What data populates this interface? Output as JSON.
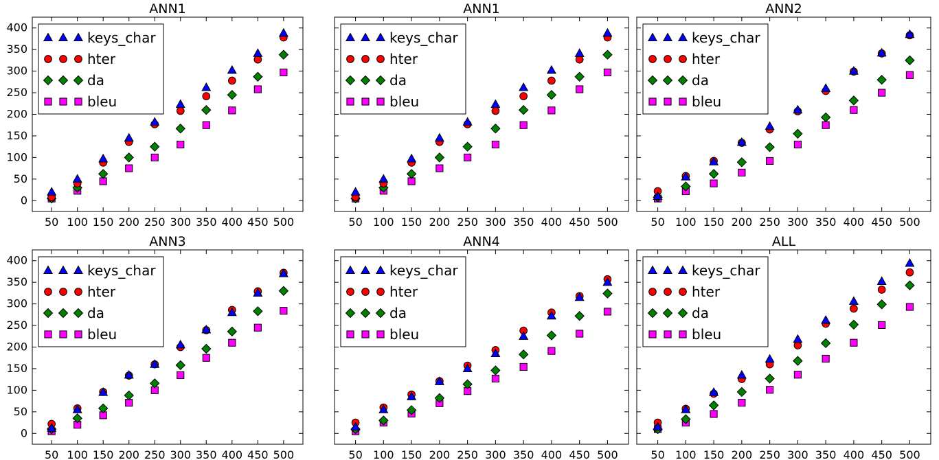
{
  "figure": {
    "marker_colors": {
      "keys_char": "#0000ff",
      "hter": "#ff0000",
      "da": "#008000",
      "bleu": "#ff00ff"
    },
    "marker_shapes": {
      "keys_char": "triangle",
      "hter": "circle",
      "da": "diamond",
      "bleu": "square"
    }
  },
  "chart_data": [
    {
      "type": "scatter",
      "title": "ANN1",
      "categories": [
        "50",
        "100",
        "150",
        "200",
        "250",
        "300",
        "350",
        "400",
        "450",
        "500"
      ],
      "ylim": [
        -25,
        425
      ],
      "yticks": [
        0,
        50,
        100,
        150,
        200,
        250,
        300,
        350,
        400
      ],
      "legend": "top-left",
      "series": [
        {
          "name": "keys_char",
          "values": [
            20,
            50,
            97,
            145,
            182,
            223,
            262,
            302,
            341,
            388
          ]
        },
        {
          "name": "hter",
          "values": [
            8,
            40,
            88,
            136,
            177,
            208,
            242,
            278,
            327,
            378
          ]
        },
        {
          "name": "da",
          "values": [
            5,
            30,
            62,
            100,
            125,
            167,
            210,
            245,
            287,
            338
          ]
        },
        {
          "name": "bleu",
          "values": [
            5,
            23,
            45,
            75,
            100,
            130,
            175,
            209,
            258,
            297
          ]
        }
      ]
    },
    {
      "type": "scatter",
      "title": "ANN1",
      "categories": [
        "50",
        "100",
        "150",
        "200",
        "250",
        "300",
        "350",
        "400",
        "450",
        "500"
      ],
      "ylim": [
        -25,
        425
      ],
      "yticks": [
        0,
        50,
        100,
        150,
        200,
        250,
        300,
        350,
        400
      ],
      "legend": "top-left",
      "series": [
        {
          "name": "keys_char",
          "values": [
            20,
            50,
            97,
            145,
            182,
            223,
            262,
            302,
            341,
            388
          ]
        },
        {
          "name": "hter",
          "values": [
            8,
            40,
            88,
            136,
            177,
            208,
            242,
            278,
            327,
            378
          ]
        },
        {
          "name": "da",
          "values": [
            5,
            30,
            62,
            100,
            125,
            167,
            210,
            245,
            287,
            338
          ]
        },
        {
          "name": "bleu",
          "values": [
            5,
            23,
            45,
            75,
            100,
            130,
            175,
            209,
            258,
            297
          ]
        }
      ]
    },
    {
      "type": "scatter",
      "title": "ANN2",
      "categories": [
        "50",
        "100",
        "150",
        "200",
        "250",
        "300",
        "350",
        "400",
        "450",
        "500"
      ],
      "ylim": [
        -25,
        425
      ],
      "yticks": [
        0,
        50,
        100,
        150,
        200,
        250,
        300,
        350,
        400
      ],
      "legend": "top-left",
      "series": [
        {
          "name": "keys_char",
          "values": [
            10,
            55,
            90,
            135,
            172,
            210,
            260,
            300,
            342,
            385
          ]
        },
        {
          "name": "hter",
          "values": [
            22,
            57,
            92,
            134,
            165,
            207,
            254,
            299,
            341,
            383
          ]
        },
        {
          "name": "da",
          "values": [
            8,
            33,
            62,
            89,
            124,
            155,
            193,
            232,
            280,
            325
          ]
        },
        {
          "name": "bleu",
          "values": [
            5,
            22,
            40,
            65,
            92,
            130,
            175,
            210,
            250,
            291
          ]
        }
      ]
    },
    {
      "type": "scatter",
      "title": "ANN3",
      "categories": [
        "50",
        "100",
        "150",
        "200",
        "250",
        "300",
        "350",
        "400",
        "450",
        "500"
      ],
      "ylim": [
        -25,
        425
      ],
      "yticks": [
        0,
        50,
        100,
        150,
        200,
        250,
        300,
        350,
        400
      ],
      "legend": "top-left",
      "series": [
        {
          "name": "keys_char",
          "values": [
            12,
            55,
            95,
            135,
            160,
            205,
            240,
            280,
            325,
            370
          ]
        },
        {
          "name": "hter",
          "values": [
            22,
            58,
            96,
            134,
            160,
            200,
            239,
            286,
            329,
            372
          ]
        },
        {
          "name": "da",
          "values": [
            10,
            35,
            58,
            88,
            116,
            158,
            196,
            236,
            283,
            330
          ]
        },
        {
          "name": "bleu",
          "values": [
            5,
            20,
            42,
            71,
            100,
            135,
            175,
            210,
            245,
            284
          ]
        }
      ]
    },
    {
      "type": "scatter",
      "title": "ANN4",
      "categories": [
        "50",
        "100",
        "150",
        "200",
        "250",
        "300",
        "350",
        "400",
        "450",
        "500"
      ],
      "ylim": [
        -25,
        425
      ],
      "yticks": [
        0,
        50,
        100,
        150,
        200,
        250,
        300,
        350,
        400
      ],
      "legend": "top-left",
      "series": [
        {
          "name": "keys_char",
          "values": [
            15,
            55,
            85,
            120,
            150,
            185,
            225,
            272,
            315,
            350
          ]
        },
        {
          "name": "hter",
          "values": [
            25,
            60,
            90,
            121,
            157,
            193,
            238,
            280,
            318,
            357
          ]
        },
        {
          "name": "da",
          "values": [
            10,
            30,
            54,
            82,
            114,
            146,
            183,
            227,
            272,
            324
          ]
        },
        {
          "name": "bleu",
          "values": [
            5,
            25,
            46,
            70,
            98,
            127,
            154,
            191,
            231,
            282
          ]
        }
      ]
    },
    {
      "type": "scatter",
      "title": "ALL",
      "categories": [
        "50",
        "100",
        "150",
        "200",
        "250",
        "300",
        "350",
        "400",
        "450",
        "500"
      ],
      "ylim": [
        -25,
        425
      ],
      "yticks": [
        0,
        50,
        100,
        150,
        200,
        250,
        300,
        350,
        400
      ],
      "legend": "top-left",
      "series": [
        {
          "name": "keys_char",
          "values": [
            15,
            55,
            95,
            135,
            172,
            218,
            262,
            306,
            352,
            394
          ]
        },
        {
          "name": "hter",
          "values": [
            25,
            57,
            92,
            126,
            160,
            204,
            254,
            289,
            333,
            373
          ]
        },
        {
          "name": "da",
          "values": [
            10,
            33,
            65,
            96,
            127,
            168,
            209,
            252,
            299,
            343
          ]
        },
        {
          "name": "bleu",
          "values": [
            10,
            25,
            45,
            71,
            101,
            136,
            173,
            210,
            251,
            293
          ]
        }
      ]
    }
  ]
}
